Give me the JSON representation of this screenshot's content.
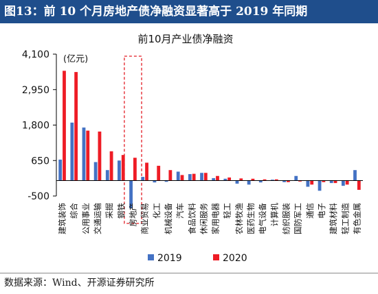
{
  "header": {
    "figure_title": "图13：前 10 个月房地产债净融资显著高于 2019 年同期"
  },
  "footer": {
    "source": "数据来源：Wind、开源证券研究所"
  },
  "chart_data": {
    "type": "bar",
    "title": "前10月产业债净融资",
    "unit_label": "(亿元)",
    "ylim": [
      -500,
      4100
    ],
    "yticks": [
      4100,
      2950,
      1800,
      650,
      -500
    ],
    "ytick_labels": [
      "4,100",
      "2,950",
      "1,800",
      "650",
      "-500"
    ],
    "categories": [
      "建筑装饰",
      "综合",
      "公用事业",
      "交通运输",
      "采掘",
      "钢铁",
      "房地产",
      "商业贸易",
      "化工",
      "机械设备",
      "汽车",
      "食品饮料",
      "休闲服务",
      "家用电器",
      "轻工",
      "农林牧渔",
      "医药生物",
      "电气设备",
      "计算机",
      "纺织服装",
      "国防军工",
      "通信",
      "电子",
      "建筑材料",
      "轻工制造",
      "有色金属"
    ],
    "highlight_category": "房地产",
    "series": [
      {
        "name": "2019",
        "color": "#4472c4",
        "values": [
          680,
          1880,
          1720,
          600,
          340,
          650,
          -900,
          120,
          -60,
          -40,
          290,
          210,
          250,
          80,
          60,
          -100,
          -130,
          -60,
          30,
          -50,
          150,
          -200,
          -330,
          -80,
          -170,
          340
        ]
      },
      {
        "name": "2020",
        "color": "#ee1c25",
        "values": [
          3560,
          3520,
          1620,
          1590,
          950,
          830,
          740,
          580,
          480,
          340,
          180,
          220,
          250,
          150,
          100,
          70,
          60,
          40,
          40,
          -50,
          -30,
          -130,
          -50,
          -80,
          -130,
          -300
        ]
      }
    ],
    "legend_position": "bottom",
    "grid": false
  }
}
